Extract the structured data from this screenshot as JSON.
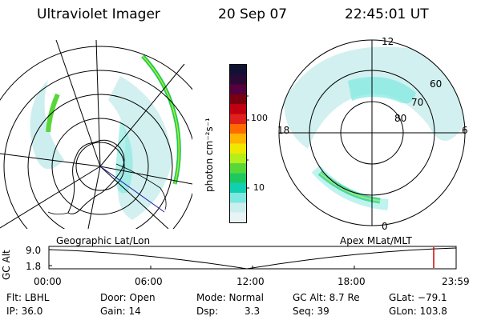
{
  "header": {
    "instrument": "Ultraviolet Imager",
    "date": "20 Sep 07",
    "time": "22:45:01 UT"
  },
  "colorbar": {
    "unit_label": "photon cm⁻²s⁻¹",
    "tick_100": "100",
    "tick_10": "10",
    "colors_top_to_bottom": [
      "#111133",
      "#2a0a35",
      "#55003f",
      "#7a0010",
      "#c00010",
      "#e0201a",
      "#ff6a00",
      "#ffb400",
      "#f0e800",
      "#b4ee1c",
      "#58d838",
      "#1ec860",
      "#10d0b0",
      "#7ee8e0",
      "#cdeeee",
      "#e8f4f4"
    ]
  },
  "left_map": {
    "label": "Geographic Lat/Lon",
    "aurora_color": "#1ec860",
    "diffuse_color": "#7ee8e0"
  },
  "right_map": {
    "label": "Apex MLat/MLT",
    "mlt_12": "12",
    "mlt_18": "18",
    "mlt_6": "6",
    "mlt_0": "0",
    "lat_60": "60",
    "lat_70": "70",
    "lat_80": "80"
  },
  "altitude_plot": {
    "ylabel": "GC Alt",
    "ytick_high": "9.0",
    "ytick_low": "1.8",
    "xticks": [
      "00:00",
      "06:00",
      "12:00",
      "18:00",
      "23:59"
    ],
    "marker_color": "#d00000"
  },
  "footer": {
    "flt": "Flt: LBHL",
    "ip": "IP: 36.0",
    "door": "Door: Open",
    "gain": "Gain: 14",
    "mode": "Mode: Normal",
    "dsp_label": "Dsp:",
    "dsp_value": "3.3",
    "gc_alt": "GC Alt: 8.7 Re",
    "seq": "Seq: 39",
    "glat": "GLat: −79.1",
    "glon": "GLon: 103.8"
  }
}
